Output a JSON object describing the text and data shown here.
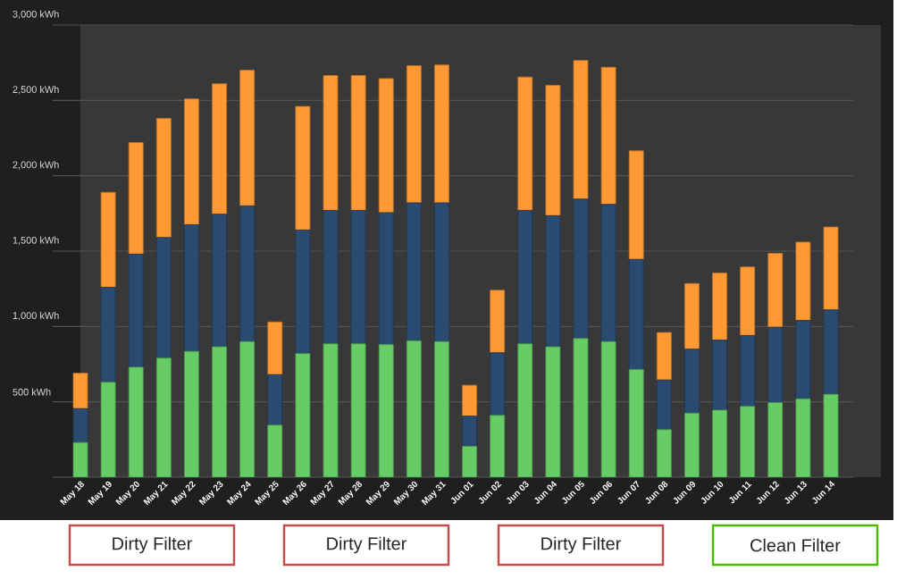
{
  "chart_data": {
    "type": "bar",
    "stacked": true,
    "grid": "y",
    "categories": [
      "May 18",
      "May 19",
      "May 20",
      "May 21",
      "May 22",
      "May 23",
      "May 24",
      "May 25",
      "May 26",
      "May 27",
      "May 28",
      "May 29",
      "May 30",
      "May 31",
      "Jun 01",
      "Jun 02",
      "Jun 03",
      "Jun 04",
      "Jun 05",
      "Jun 06",
      "Jun 07",
      "Jun 08",
      "Jun 09",
      "Jun 10",
      "Jun 11",
      "Jun 12",
      "Jun 13",
      "Jun 14"
    ],
    "series": [
      {
        "color": "#66cc66",
        "values": [
          230,
          630,
          730,
          790,
          835,
          865,
          900,
          345,
          820,
          885,
          885,
          880,
          905,
          900,
          205,
          410,
          885,
          865,
          920,
          900,
          715,
          315,
          425,
          445,
          470,
          495,
          520,
          550
        ]
      },
      {
        "color": "#2b4a6f",
        "values": [
          225,
          630,
          750,
          800,
          840,
          880,
          900,
          335,
          820,
          885,
          885,
          875,
          915,
          920,
          200,
          415,
          885,
          870,
          925,
          910,
          730,
          330,
          425,
          465,
          470,
          500,
          520,
          560
        ]
      },
      {
        "color": "#ff9933",
        "values": [
          235,
          630,
          740,
          790,
          835,
          865,
          900,
          350,
          820,
          895,
          895,
          890,
          910,
          915,
          205,
          415,
          885,
          865,
          920,
          910,
          720,
          315,
          435,
          445,
          455,
          490,
          520,
          550
        ]
      }
    ],
    "ylim": [
      0,
      3000
    ],
    "yticks": [
      {
        "value": 500,
        "label": "500 kWh"
      },
      {
        "value": 1000,
        "label": "1,000 kWh"
      },
      {
        "value": 1500,
        "label": "1,500 kWh"
      },
      {
        "value": 2000,
        "label": "2,000 kWh"
      },
      {
        "value": 2500,
        "label": "2,500 kWh"
      },
      {
        "value": 3000,
        "label": "3,000 kWh"
      }
    ],
    "annotations": [
      "Dirty Filter",
      "Dirty Filter",
      "Dirty Filter",
      "Clean Filter"
    ]
  }
}
